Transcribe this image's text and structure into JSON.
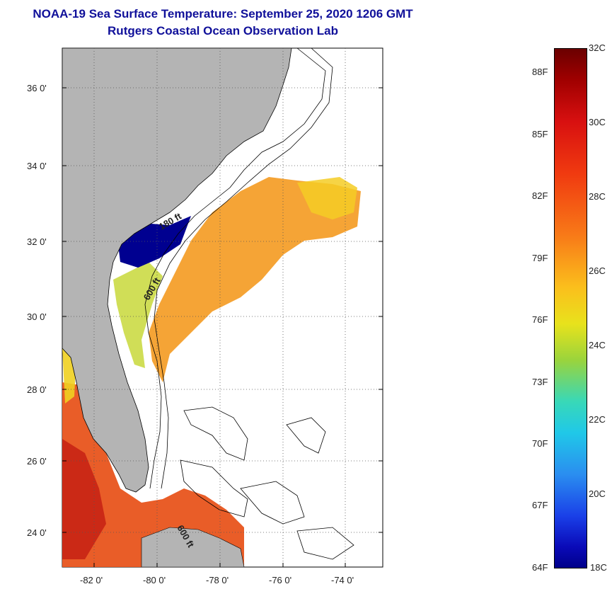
{
  "title_line1": "NOAA-19 Sea Surface Temperature:  September 25, 2020 1206 GMT",
  "title_line2": "Rutgers Coastal Ocean Observation Lab",
  "lat_ticks": [
    "36 0'",
    "34 0'",
    "32 0'",
    "30 0'",
    "28 0'",
    "26 0'",
    "24 0'"
  ],
  "lon_ticks": [
    "-82 0'",
    "-80 0'",
    "-78 0'",
    "-76 0'",
    "-74 0'"
  ],
  "contour_labels": [
    "180 ft",
    "600 ft",
    "600 ft"
  ],
  "colorbar": {
    "celsius": [
      "32C",
      "30C",
      "28C",
      "26C",
      "24C",
      "22C",
      "20C",
      "18C"
    ],
    "fahrenheit": [
      "88F",
      "85F",
      "82F",
      "79F",
      "76F",
      "73F",
      "70F",
      "67F",
      "64F"
    ]
  },
  "colors": {
    "title": "#10109a",
    "land": "#b4b4b4"
  }
}
